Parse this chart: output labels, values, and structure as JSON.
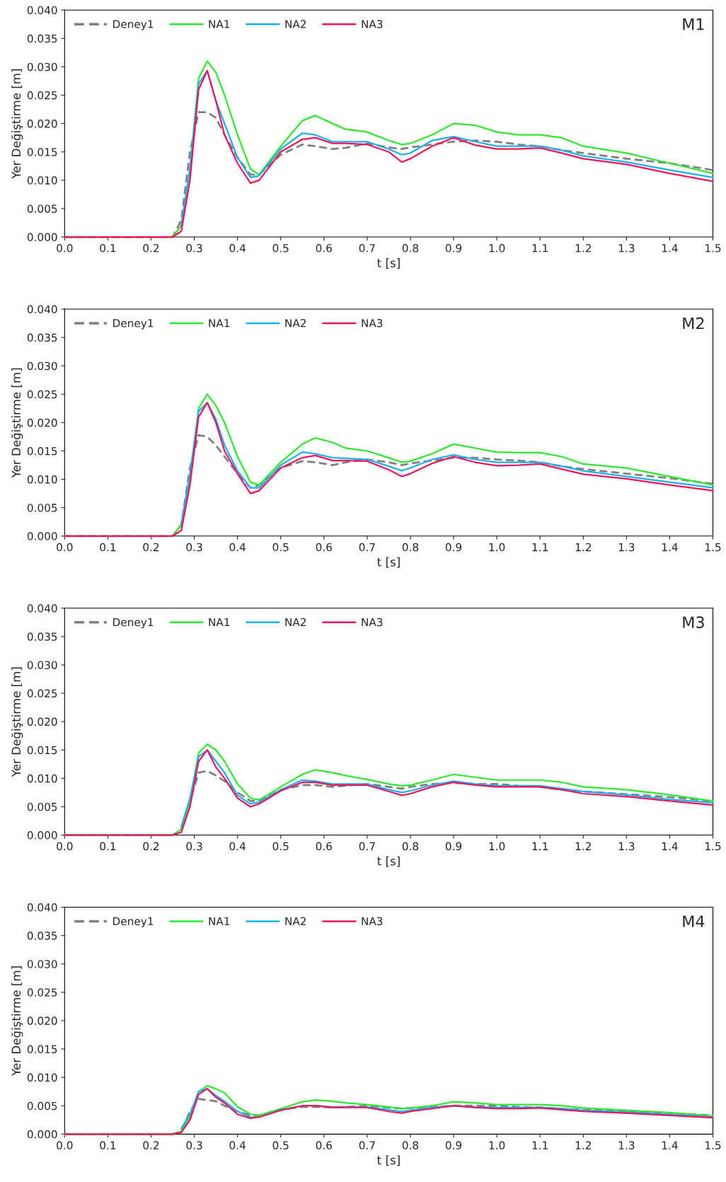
{
  "chart_data": [
    {
      "type": "line",
      "title": "M1",
      "xlabel": "t [s]",
      "ylabel": "Yer Değiştirme [m]",
      "legend": "top left",
      "grid": false,
      "x": [
        0,
        0.25,
        0.27,
        0.29,
        0.31,
        0.33,
        0.35,
        0.37,
        0.4,
        0.43,
        0.45,
        0.5,
        0.55,
        0.58,
        0.62,
        0.65,
        0.7,
        0.75,
        0.78,
        0.8,
        0.85,
        0.9,
        0.95,
        1.0,
        1.05,
        1.1,
        1.15,
        1.2,
        1.3,
        1.4,
        1.5
      ],
      "xlim": [
        0,
        1.5
      ],
      "ylim": [
        0,
        0.04
      ],
      "xticks": [
        {
          "value": 0,
          "label": "0.0"
        },
        {
          "value": 0.1,
          "label": "0.1"
        },
        {
          "value": 0.2,
          "label": "0.2"
        },
        {
          "value": 0.3,
          "label": "0.3"
        },
        {
          "value": 0.4,
          "label": "0.4"
        },
        {
          "value": 0.5,
          "label": "0.5"
        },
        {
          "value": 0.6,
          "label": "0.6"
        },
        {
          "value": 0.7,
          "label": "0.7"
        },
        {
          "value": 0.8,
          "label": "0.8"
        },
        {
          "value": 0.9,
          "label": "0.9"
        },
        {
          "value": 1.0,
          "label": "1.0"
        },
        {
          "value": 1.1,
          "label": "1.1"
        },
        {
          "value": 1.2,
          "label": "1.2"
        },
        {
          "value": 1.3,
          "label": "1.3"
        },
        {
          "value": 1.4,
          "label": "1.4"
        },
        {
          "value": 1.5,
          "label": "1.5"
        }
      ],
      "yticks": [
        {
          "value": 0,
          "label": "0.000"
        },
        {
          "value": 0.005,
          "label": "0.005"
        },
        {
          "value": 0.01,
          "label": "0.010"
        },
        {
          "value": 0.015,
          "label": "0.015"
        },
        {
          "value": 0.02,
          "label": "0.020"
        },
        {
          "value": 0.025,
          "label": "0.025"
        },
        {
          "value": 0.03,
          "label": "0.030"
        },
        {
          "value": 0.035,
          "label": "0.035"
        },
        {
          "value": 0.04,
          "label": "0.040"
        }
      ],
      "series": [
        {
          "name": "Deney1",
          "color": "#808080",
          "line_style": "dashed",
          "values": [
            0,
            0,
            0.003,
            0.015,
            0.022,
            0.022,
            0.021,
            0.018,
            0.014,
            0.011,
            0.011,
            0.0145,
            0.0163,
            0.016,
            0.0155,
            0.0157,
            0.0165,
            0.0158,
            0.0155,
            0.0158,
            0.0163,
            0.0168,
            0.017,
            0.0168,
            0.0163,
            0.016,
            0.0153,
            0.0148,
            0.0138,
            0.013,
            0.0118
          ]
        },
        {
          "name": "NA1",
          "color": "#2ee82e",
          "line_style": "solid",
          "values": [
            0,
            0,
            0.002,
            0.012,
            0.028,
            0.031,
            0.029,
            0.025,
            0.018,
            0.012,
            0.011,
            0.016,
            0.0205,
            0.0214,
            0.02,
            0.019,
            0.0185,
            0.017,
            0.0163,
            0.0165,
            0.018,
            0.02,
            0.0197,
            0.0185,
            0.018,
            0.018,
            0.0175,
            0.016,
            0.0148,
            0.013,
            0.0112
          ]
        },
        {
          "name": "NA2",
          "color": "#1ab0f0",
          "line_style": "solid",
          "values": [
            null,
            null,
            0.002,
            0.012,
            0.027,
            0.0293,
            0.024,
            0.02,
            0.014,
            0.0105,
            0.0108,
            0.0155,
            0.0183,
            0.018,
            0.0168,
            0.0168,
            0.0168,
            0.0155,
            0.0145,
            0.0148,
            0.017,
            0.0177,
            0.0168,
            0.016,
            0.016,
            0.016,
            0.0153,
            0.0143,
            0.0132,
            0.0118,
            0.0105
          ]
        },
        {
          "name": "NA3",
          "color": "#f0145a",
          "line_style": "solid",
          "values": [
            0,
            0,
            0.001,
            0.01,
            0.026,
            0.0293,
            0.024,
            0.018,
            0.013,
            0.0095,
            0.01,
            0.015,
            0.0172,
            0.0175,
            0.0165,
            0.0165,
            0.0163,
            0.015,
            0.0132,
            0.0138,
            0.016,
            0.0175,
            0.0162,
            0.0155,
            0.0155,
            0.0157,
            0.0148,
            0.0138,
            0.0128,
            0.0112,
            0.0098
          ]
        }
      ]
    },
    {
      "type": "line",
      "title": "M2",
      "xlabel": "t [s]",
      "ylabel": "Yer Değiştirme [m]",
      "legend": "top left",
      "grid": false,
      "x": [
        0,
        0.25,
        0.27,
        0.29,
        0.31,
        0.33,
        0.35,
        0.37,
        0.4,
        0.43,
        0.45,
        0.5,
        0.55,
        0.58,
        0.62,
        0.65,
        0.7,
        0.75,
        0.78,
        0.8,
        0.85,
        0.9,
        0.95,
        1.0,
        1.05,
        1.1,
        1.15,
        1.2,
        1.3,
        1.4,
        1.5
      ],
      "xlim": [
        0,
        1.5
      ],
      "ylim": [
        0,
        0.04
      ],
      "xticks": [
        {
          "value": 0,
          "label": "0.0"
        },
        {
          "value": 0.1,
          "label": "0.1"
        },
        {
          "value": 0.2,
          "label": "0.2"
        },
        {
          "value": 0.3,
          "label": "0.3"
        },
        {
          "value": 0.4,
          "label": "0.4"
        },
        {
          "value": 0.5,
          "label": "0.5"
        },
        {
          "value": 0.6,
          "label": "0.6"
        },
        {
          "value": 0.7,
          "label": "0.7"
        },
        {
          "value": 0.8,
          "label": "0.8"
        },
        {
          "value": 0.9,
          "label": "0.9"
        },
        {
          "value": 1.0,
          "label": "1.0"
        },
        {
          "value": 1.1,
          "label": "1.1"
        },
        {
          "value": 1.2,
          "label": "1.2"
        },
        {
          "value": 1.3,
          "label": "1.3"
        },
        {
          "value": 1.4,
          "label": "1.4"
        },
        {
          "value": 1.5,
          "label": "1.5"
        }
      ],
      "yticks": [
        {
          "value": 0,
          "label": "0.000"
        },
        {
          "value": 0.005,
          "label": "0.005"
        },
        {
          "value": 0.01,
          "label": "0.010"
        },
        {
          "value": 0.015,
          "label": "0.015"
        },
        {
          "value": 0.02,
          "label": "0.020"
        },
        {
          "value": 0.025,
          "label": "0.025"
        },
        {
          "value": 0.03,
          "label": "0.030"
        },
        {
          "value": 0.035,
          "label": "0.035"
        },
        {
          "value": 0.04,
          "label": "0.040"
        }
      ],
      "series": [
        {
          "name": "Deney1",
          "color": "#808080",
          "line_style": "dashed",
          "values": [
            0,
            0,
            0.002,
            0.012,
            0.0178,
            0.0175,
            0.016,
            0.014,
            0.011,
            0.0085,
            0.009,
            0.012,
            0.0132,
            0.013,
            0.0125,
            0.013,
            0.0135,
            0.013,
            0.0125,
            0.0128,
            0.0133,
            0.0138,
            0.0138,
            0.0135,
            0.0133,
            0.013,
            0.0123,
            0.0118,
            0.011,
            0.0102,
            0.0092
          ]
        },
        {
          "name": "NA1",
          "color": "#2ee82e",
          "line_style": "solid",
          "values": [
            0,
            0,
            0.002,
            0.01,
            0.0225,
            0.025,
            0.023,
            0.02,
            0.014,
            0.0095,
            0.009,
            0.013,
            0.0162,
            0.0173,
            0.0165,
            0.0155,
            0.015,
            0.0138,
            0.013,
            0.0132,
            0.0145,
            0.0162,
            0.0155,
            0.0148,
            0.0147,
            0.0147,
            0.014,
            0.0127,
            0.012,
            0.0105,
            0.009
          ]
        },
        {
          "name": "NA2",
          "color": "#1ab0f0",
          "line_style": "solid",
          "values": [
            null,
            null,
            0.002,
            0.011,
            0.022,
            0.0235,
            0.0206,
            0.016,
            0.0115,
            0.0085,
            0.0085,
            0.0125,
            0.0148,
            0.0145,
            0.0138,
            0.0137,
            0.0135,
            0.0123,
            0.0115,
            0.012,
            0.0135,
            0.0143,
            0.0135,
            0.013,
            0.013,
            0.013,
            0.0123,
            0.0115,
            0.0105,
            0.0095,
            0.0085
          ]
        },
        {
          "name": "NA3",
          "color": "#f0145a",
          "line_style": "solid",
          "values": [
            0,
            0,
            0.001,
            0.009,
            0.021,
            0.0235,
            0.02,
            0.015,
            0.011,
            0.0075,
            0.008,
            0.012,
            0.0138,
            0.0142,
            0.0133,
            0.0133,
            0.0132,
            0.0117,
            0.0105,
            0.011,
            0.0128,
            0.014,
            0.013,
            0.0124,
            0.0125,
            0.0127,
            0.0118,
            0.0109,
            0.0101,
            0.009,
            0.008
          ]
        }
      ]
    },
    {
      "type": "line",
      "title": "M3",
      "xlabel": "t [s]",
      "ylabel": "Yer Değiştirme [m]",
      "legend": "top left",
      "grid": false,
      "x": [
        0,
        0.25,
        0.27,
        0.29,
        0.31,
        0.33,
        0.35,
        0.37,
        0.4,
        0.43,
        0.45,
        0.5,
        0.55,
        0.58,
        0.62,
        0.65,
        0.7,
        0.75,
        0.78,
        0.8,
        0.85,
        0.9,
        0.95,
        1.0,
        1.05,
        1.1,
        1.15,
        1.2,
        1.3,
        1.4,
        1.5
      ],
      "xlim": [
        0,
        1.5
      ],
      "ylim": [
        0,
        0.04
      ],
      "xticks": [
        {
          "value": 0,
          "label": "0.0"
        },
        {
          "value": 0.1,
          "label": "0.1"
        },
        {
          "value": 0.2,
          "label": "0.2"
        },
        {
          "value": 0.3,
          "label": "0.3"
        },
        {
          "value": 0.4,
          "label": "0.4"
        },
        {
          "value": 0.5,
          "label": "0.5"
        },
        {
          "value": 0.6,
          "label": "0.6"
        },
        {
          "value": 0.7,
          "label": "0.7"
        },
        {
          "value": 0.8,
          "label": "0.8"
        },
        {
          "value": 0.9,
          "label": "0.9"
        },
        {
          "value": 1.0,
          "label": "1.0"
        },
        {
          "value": 1.1,
          "label": "1.1"
        },
        {
          "value": 1.2,
          "label": "1.2"
        },
        {
          "value": 1.3,
          "label": "1.3"
        },
        {
          "value": 1.4,
          "label": "1.4"
        },
        {
          "value": 1.5,
          "label": "1.5"
        }
      ],
      "yticks": [
        {
          "value": 0,
          "label": "0.000"
        },
        {
          "value": 0.005,
          "label": "0.005"
        },
        {
          "value": 0.01,
          "label": "0.010"
        },
        {
          "value": 0.015,
          "label": "0.015"
        },
        {
          "value": 0.02,
          "label": "0.020"
        },
        {
          "value": 0.025,
          "label": "0.025"
        },
        {
          "value": 0.03,
          "label": "0.030"
        },
        {
          "value": 0.035,
          "label": "0.035"
        },
        {
          "value": 0.04,
          "label": "0.040"
        }
      ],
      "series": [
        {
          "name": "Deney1",
          "color": "#808080",
          "line_style": "dashed",
          "values": [
            0,
            0,
            0.001,
            0.006,
            0.011,
            0.0113,
            0.0105,
            0.0095,
            0.0075,
            0.006,
            0.006,
            0.008,
            0.0088,
            0.0088,
            0.0085,
            0.0087,
            0.009,
            0.0085,
            0.0082,
            0.0085,
            0.009,
            0.0092,
            0.009,
            0.009,
            0.0087,
            0.0085,
            0.008,
            0.0077,
            0.0072,
            0.0067,
            0.006
          ]
        },
        {
          "name": "NA1",
          "color": "#2ee82e",
          "line_style": "solid",
          "values": [
            0,
            0,
            0.001,
            0.006,
            0.0145,
            0.016,
            0.015,
            0.013,
            0.009,
            0.0065,
            0.0062,
            0.0085,
            0.0107,
            0.0115,
            0.011,
            0.0105,
            0.0098,
            0.009,
            0.0087,
            0.0088,
            0.0097,
            0.0107,
            0.0102,
            0.0097,
            0.0097,
            0.0097,
            0.0093,
            0.0085,
            0.008,
            0.0071,
            0.006
          ]
        },
        {
          "name": "NA2",
          "color": "#1ab0f0",
          "line_style": "solid",
          "values": [
            null,
            null,
            0.0015,
            0.0065,
            0.0138,
            0.015,
            0.013,
            0.011,
            0.007,
            0.0055,
            0.0058,
            0.008,
            0.0097,
            0.0095,
            0.009,
            0.009,
            0.009,
            0.008,
            0.0075,
            0.0078,
            0.0088,
            0.0095,
            0.009,
            0.0087,
            0.0087,
            0.0087,
            0.0082,
            0.0077,
            0.0071,
            0.0063,
            0.0057
          ]
        },
        {
          "name": "NA3",
          "color": "#f0145a",
          "line_style": "solid",
          "values": [
            0,
            0,
            0.0005,
            0.005,
            0.013,
            0.015,
            0.012,
            0.01,
            0.0065,
            0.005,
            0.0055,
            0.0078,
            0.0093,
            0.0093,
            0.0088,
            0.0088,
            0.0088,
            0.0077,
            0.007,
            0.0073,
            0.0085,
            0.0093,
            0.0088,
            0.0085,
            0.0085,
            0.0085,
            0.008,
            0.0073,
            0.0068,
            0.006,
            0.0053
          ]
        }
      ]
    },
    {
      "type": "line",
      "title": "M4",
      "xlabel": "t [s]",
      "ylabel": "Yer Değiştirme [m]",
      "legend": "top left",
      "grid": false,
      "x": [
        0,
        0.25,
        0.27,
        0.29,
        0.31,
        0.33,
        0.35,
        0.37,
        0.4,
        0.43,
        0.45,
        0.5,
        0.55,
        0.58,
        0.62,
        0.65,
        0.7,
        0.75,
        0.78,
        0.8,
        0.85,
        0.9,
        0.95,
        1.0,
        1.05,
        1.1,
        1.15,
        1.2,
        1.3,
        1.4,
        1.5
      ],
      "xlim": [
        0,
        1.5
      ],
      "ylim": [
        0,
        0.04
      ],
      "xticks": [
        {
          "value": 0,
          "label": "0.0"
        },
        {
          "value": 0.1,
          "label": "0.1"
        },
        {
          "value": 0.2,
          "label": "0.2"
        },
        {
          "value": 0.3,
          "label": "0.3"
        },
        {
          "value": 0.4,
          "label": "0.4"
        },
        {
          "value": 0.5,
          "label": "0.5"
        },
        {
          "value": 0.6,
          "label": "0.6"
        },
        {
          "value": 0.7,
          "label": "0.7"
        },
        {
          "value": 0.8,
          "label": "0.8"
        },
        {
          "value": 0.9,
          "label": "0.9"
        },
        {
          "value": 1.0,
          "label": "1.0"
        },
        {
          "value": 1.1,
          "label": "1.1"
        },
        {
          "value": 1.2,
          "label": "1.2"
        },
        {
          "value": 1.3,
          "label": "1.3"
        },
        {
          "value": 1.4,
          "label": "1.4"
        },
        {
          "value": 1.5,
          "label": "1.5"
        }
      ],
      "yticks": [
        {
          "value": 0,
          "label": "0.000"
        },
        {
          "value": 0.005,
          "label": "0.005"
        },
        {
          "value": 0.01,
          "label": "0.010"
        },
        {
          "value": 0.015,
          "label": "0.015"
        },
        {
          "value": 0.02,
          "label": "0.020"
        },
        {
          "value": 0.025,
          "label": "0.025"
        },
        {
          "value": 0.03,
          "label": "0.030"
        },
        {
          "value": 0.035,
          "label": "0.035"
        },
        {
          "value": 0.04,
          "label": "0.040"
        }
      ],
      "series": [
        {
          "name": "Deney1",
          "color": "#808080",
          "line_style": "dashed",
          "values": [
            0,
            0,
            0.0005,
            0.004,
            0.0062,
            0.006,
            0.0058,
            0.005,
            0.004,
            0.0033,
            0.0033,
            0.0043,
            0.0048,
            0.0048,
            0.0047,
            0.0048,
            0.005,
            0.0047,
            0.0045,
            0.0046,
            0.0048,
            0.005,
            0.005,
            0.005,
            0.0048,
            0.0047,
            0.0045,
            0.0043,
            0.004,
            0.0037,
            0.0033
          ]
        },
        {
          "name": "NA1",
          "color": "#2ee82e",
          "line_style": "solid",
          "values": [
            0,
            0,
            0.0005,
            0.003,
            0.0075,
            0.0085,
            0.008,
            0.0073,
            0.0048,
            0.0035,
            0.0033,
            0.0045,
            0.0057,
            0.006,
            0.0058,
            0.0055,
            0.0052,
            0.0048,
            0.0045,
            0.0046,
            0.005,
            0.0057,
            0.0055,
            0.0052,
            0.0052,
            0.0052,
            0.005,
            0.0046,
            0.0042,
            0.0038,
            0.0032
          ]
        },
        {
          "name": "NA2",
          "color": "#1ab0f0",
          "line_style": "solid",
          "values": [
            null,
            null,
            0.001,
            0.0035,
            0.0075,
            0.008,
            0.0068,
            0.0058,
            0.004,
            0.003,
            0.003,
            0.0043,
            0.005,
            0.005,
            0.0048,
            0.0048,
            0.0048,
            0.0043,
            0.004,
            0.0042,
            0.0047,
            0.005,
            0.0048,
            0.0047,
            0.0047,
            0.0047,
            0.0045,
            0.0042,
            0.0039,
            0.0035,
            0.003
          ]
        },
        {
          "name": "NA3",
          "color": "#f0145a",
          "line_style": "solid",
          "values": [
            0,
            0,
            0.0003,
            0.0025,
            0.007,
            0.008,
            0.0065,
            0.0055,
            0.0035,
            0.0028,
            0.003,
            0.0042,
            0.005,
            0.005,
            0.0047,
            0.0047,
            0.0047,
            0.004,
            0.0037,
            0.004,
            0.0045,
            0.005,
            0.0047,
            0.0045,
            0.0045,
            0.0046,
            0.0043,
            0.004,
            0.0037,
            0.0033,
            0.0029
          ]
        }
      ]
    }
  ]
}
